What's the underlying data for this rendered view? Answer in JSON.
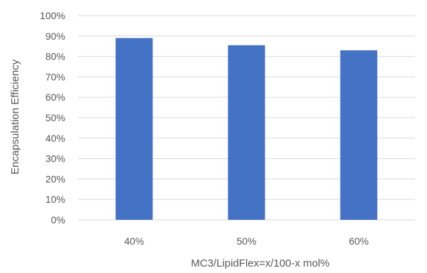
{
  "chart_data": {
    "type": "bar",
    "title": "",
    "xlabel": "MC3/LipidFlex=x/100-x mol%",
    "ylabel": "Encapsulation Efficiency",
    "categories": [
      "40%",
      "50%",
      "60%"
    ],
    "values": [
      89,
      85.5,
      83
    ],
    "value_format": "percent",
    "ylim": [
      0,
      100
    ],
    "y_ticks": [
      "0%",
      "10%",
      "20%",
      "30%",
      "40%",
      "50%",
      "60%",
      "70%",
      "80%",
      "90%",
      "100%"
    ],
    "grid": true,
    "legend": "none",
    "colors": {
      "bar": "#4472C4",
      "grid": "#D9D9D9",
      "text": "#595959"
    }
  }
}
